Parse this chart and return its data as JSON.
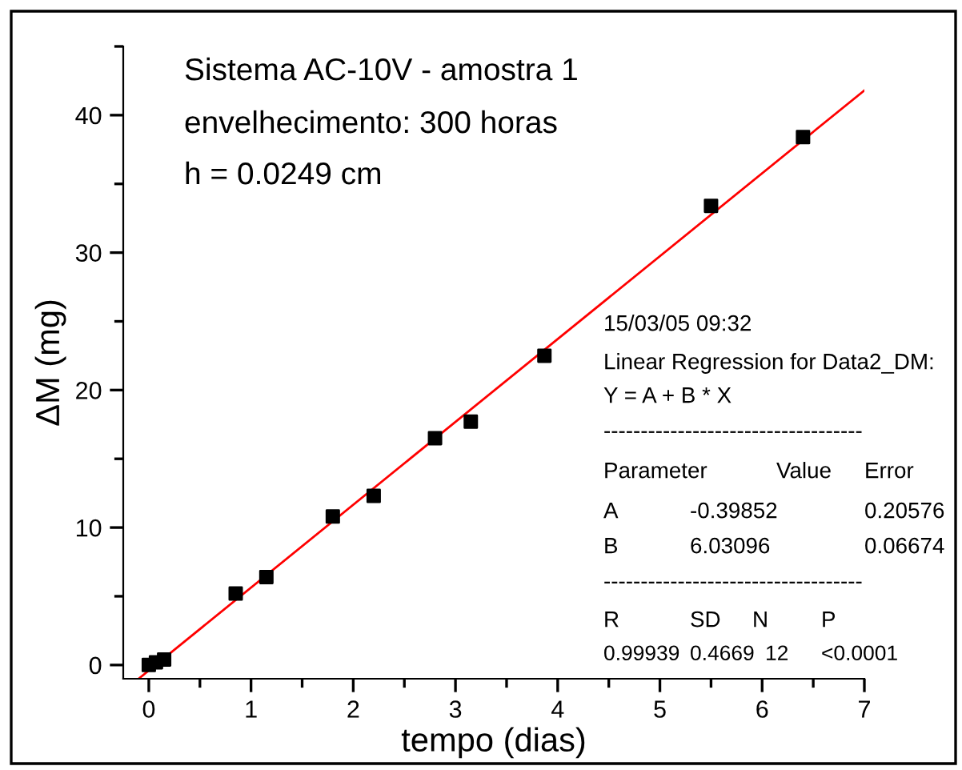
{
  "chart_data": {
    "type": "scatter",
    "title": "Sistema AC-10V - amostra 1",
    "subtitle": "envelhecimento: 300 horas",
    "xlabel": "tempo (dias)",
    "ylabel": "ΔM (mg)",
    "x": [
      0,
      0.07,
      0.15,
      0.85,
      1.15,
      1.8,
      2.2,
      2.8,
      3.15,
      3.87,
      5.5,
      6.4
    ],
    "series": [
      {
        "color": "#000000",
        "marker": "square",
        "values": [
          0,
          0.2,
          0.4,
          5.2,
          6.4,
          10.8,
          12.3,
          16.5,
          17.7,
          22.5,
          33.4,
          38.4
        ]
      },
      {
        "type": "line",
        "marker": "none",
        "color": "#ff0000",
        "x": [
          -0.1,
          7
        ],
        "values": [
          -1.0,
          41.8
        ]
      }
    ],
    "xlim": [
      -0.25,
      7
    ],
    "ylim": [
      -1,
      45
    ],
    "xticks": [
      0,
      1,
      2,
      3,
      4,
      5,
      6,
      7
    ],
    "yticks": [
      0,
      10,
      20,
      30,
      40
    ],
    "grid": false,
    "legend": false,
    "annotations": [
      "h = 0.0249 cm",
      "15/03/05 09:32",
      "Linear Regression for Data2_DM:",
      "Y = A + B * X",
      "-----------------------------------",
      "Parameter",
      "Value",
      "Error",
      "A",
      "-0.39852",
      "0.20576",
      "B",
      "6.03096",
      "0.06674",
      "-----------------------------------",
      "R",
      "SD",
      "N",
      "P",
      "0.99939",
      "0.4669",
      "12",
      "<0.0001"
    ]
  }
}
